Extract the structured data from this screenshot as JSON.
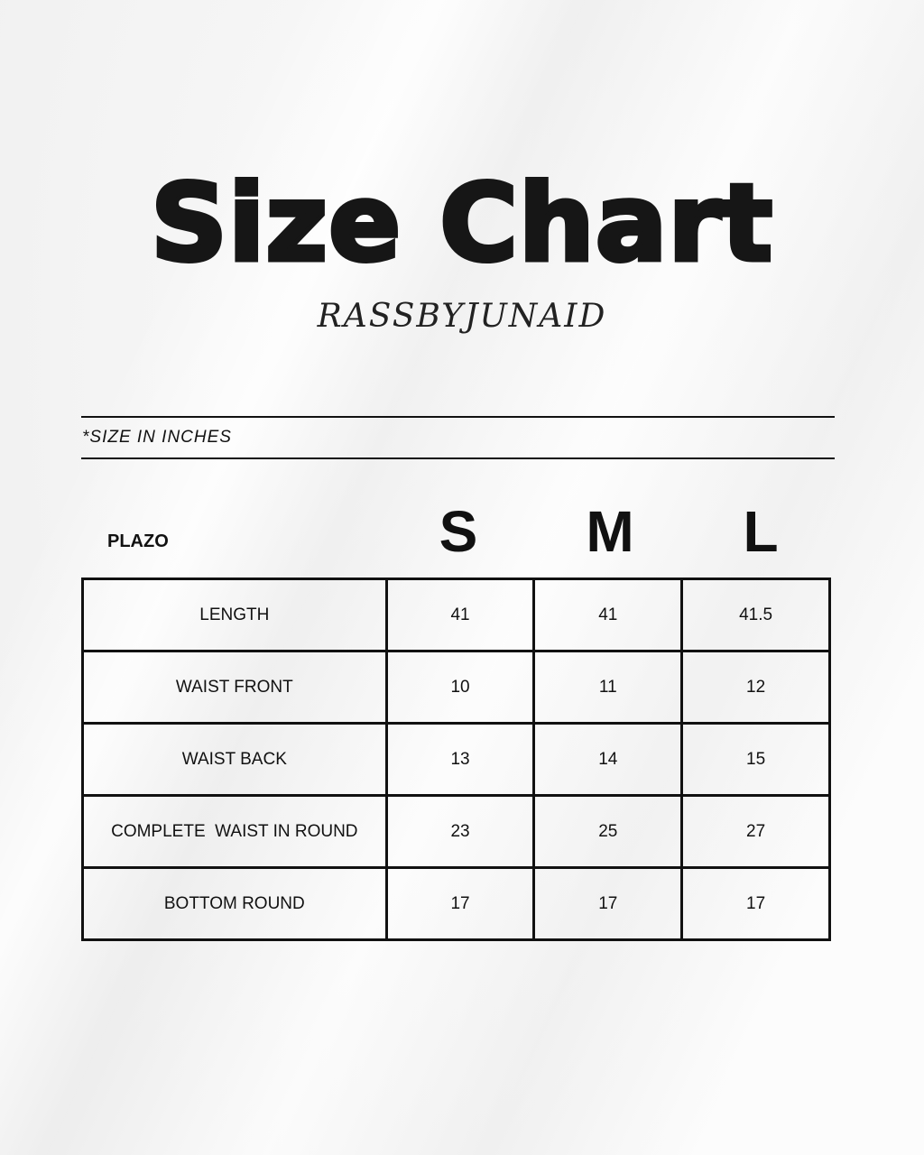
{
  "title": "Size Chart",
  "brand": "RASSBYJUNAID",
  "units_note": "*SIZE IN INCHES",
  "table": {
    "product": "PLAZO",
    "sizes": [
      "S",
      "M",
      "L"
    ],
    "rows": [
      {
        "label": "LENGTH",
        "values": [
          "41",
          "41",
          "41.5"
        ]
      },
      {
        "label": "WAIST FRONT",
        "values": [
          "10",
          "11",
          "12"
        ]
      },
      {
        "label": "WAIST BACK",
        "values": [
          "13",
          "14",
          "15"
        ]
      },
      {
        "label": "COMPLETE  WAIST IN ROUND",
        "values": [
          "23",
          "25",
          "27"
        ]
      },
      {
        "label": "BOTTOM ROUND",
        "values": [
          "17",
          "17",
          "17"
        ]
      }
    ]
  }
}
